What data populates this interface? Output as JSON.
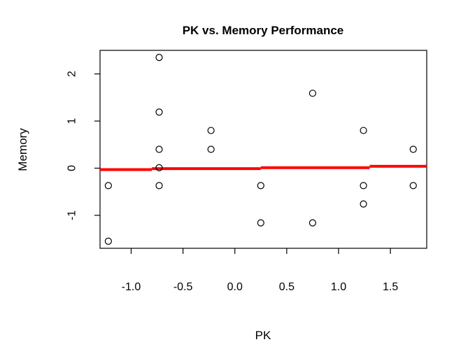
{
  "chart_data": {
    "type": "scatter",
    "title": "PK vs. Memory Performance",
    "xlabel": "PK",
    "ylabel": "Memory",
    "xlim": [
      -1.3,
      1.85
    ],
    "ylim": [
      -1.7,
      2.5
    ],
    "xticks": [
      -1.0,
      -0.5,
      0.0,
      0.5,
      1.0,
      1.5
    ],
    "xtick_labels": [
      "-1.0",
      "-0.5",
      "0.0",
      "0.5",
      "1.0",
      "1.5"
    ],
    "yticks": [
      -1,
      0,
      1,
      2
    ],
    "ytick_labels": [
      "-1",
      "0",
      "1",
      "2"
    ],
    "grid": false,
    "points": [
      {
        "x": -1.22,
        "y": -0.37
      },
      {
        "x": -1.22,
        "y": -1.55
      },
      {
        "x": -0.73,
        "y": 2.35
      },
      {
        "x": -0.73,
        "y": 1.19
      },
      {
        "x": -0.73,
        "y": 0.4
      },
      {
        "x": -0.73,
        "y": 0.01
      },
      {
        "x": -0.73,
        "y": -0.37
      },
      {
        "x": -0.23,
        "y": 0.8
      },
      {
        "x": -0.23,
        "y": 0.4
      },
      {
        "x": 0.25,
        "y": -0.37
      },
      {
        "x": 0.25,
        "y": -1.16
      },
      {
        "x": 0.75,
        "y": 1.59
      },
      {
        "x": 0.75,
        "y": -1.16
      },
      {
        "x": 1.24,
        "y": 0.8
      },
      {
        "x": 1.24,
        "y": -0.37
      },
      {
        "x": 1.24,
        "y": -0.76
      },
      {
        "x": 1.72,
        "y": 0.4
      },
      {
        "x": 1.72,
        "y": -0.37
      }
    ],
    "trend_line": {
      "color": "#ff0000",
      "segments": [
        {
          "x": [
            -1.3,
            -0.8
          ],
          "y": -0.03
        },
        {
          "x": [
            -0.8,
            0.25
          ],
          "y": -0.01
        },
        {
          "x": [
            0.25,
            1.3
          ],
          "y": 0.01
        },
        {
          "x": [
            1.3,
            1.85
          ],
          "y": 0.04
        }
      ]
    }
  }
}
